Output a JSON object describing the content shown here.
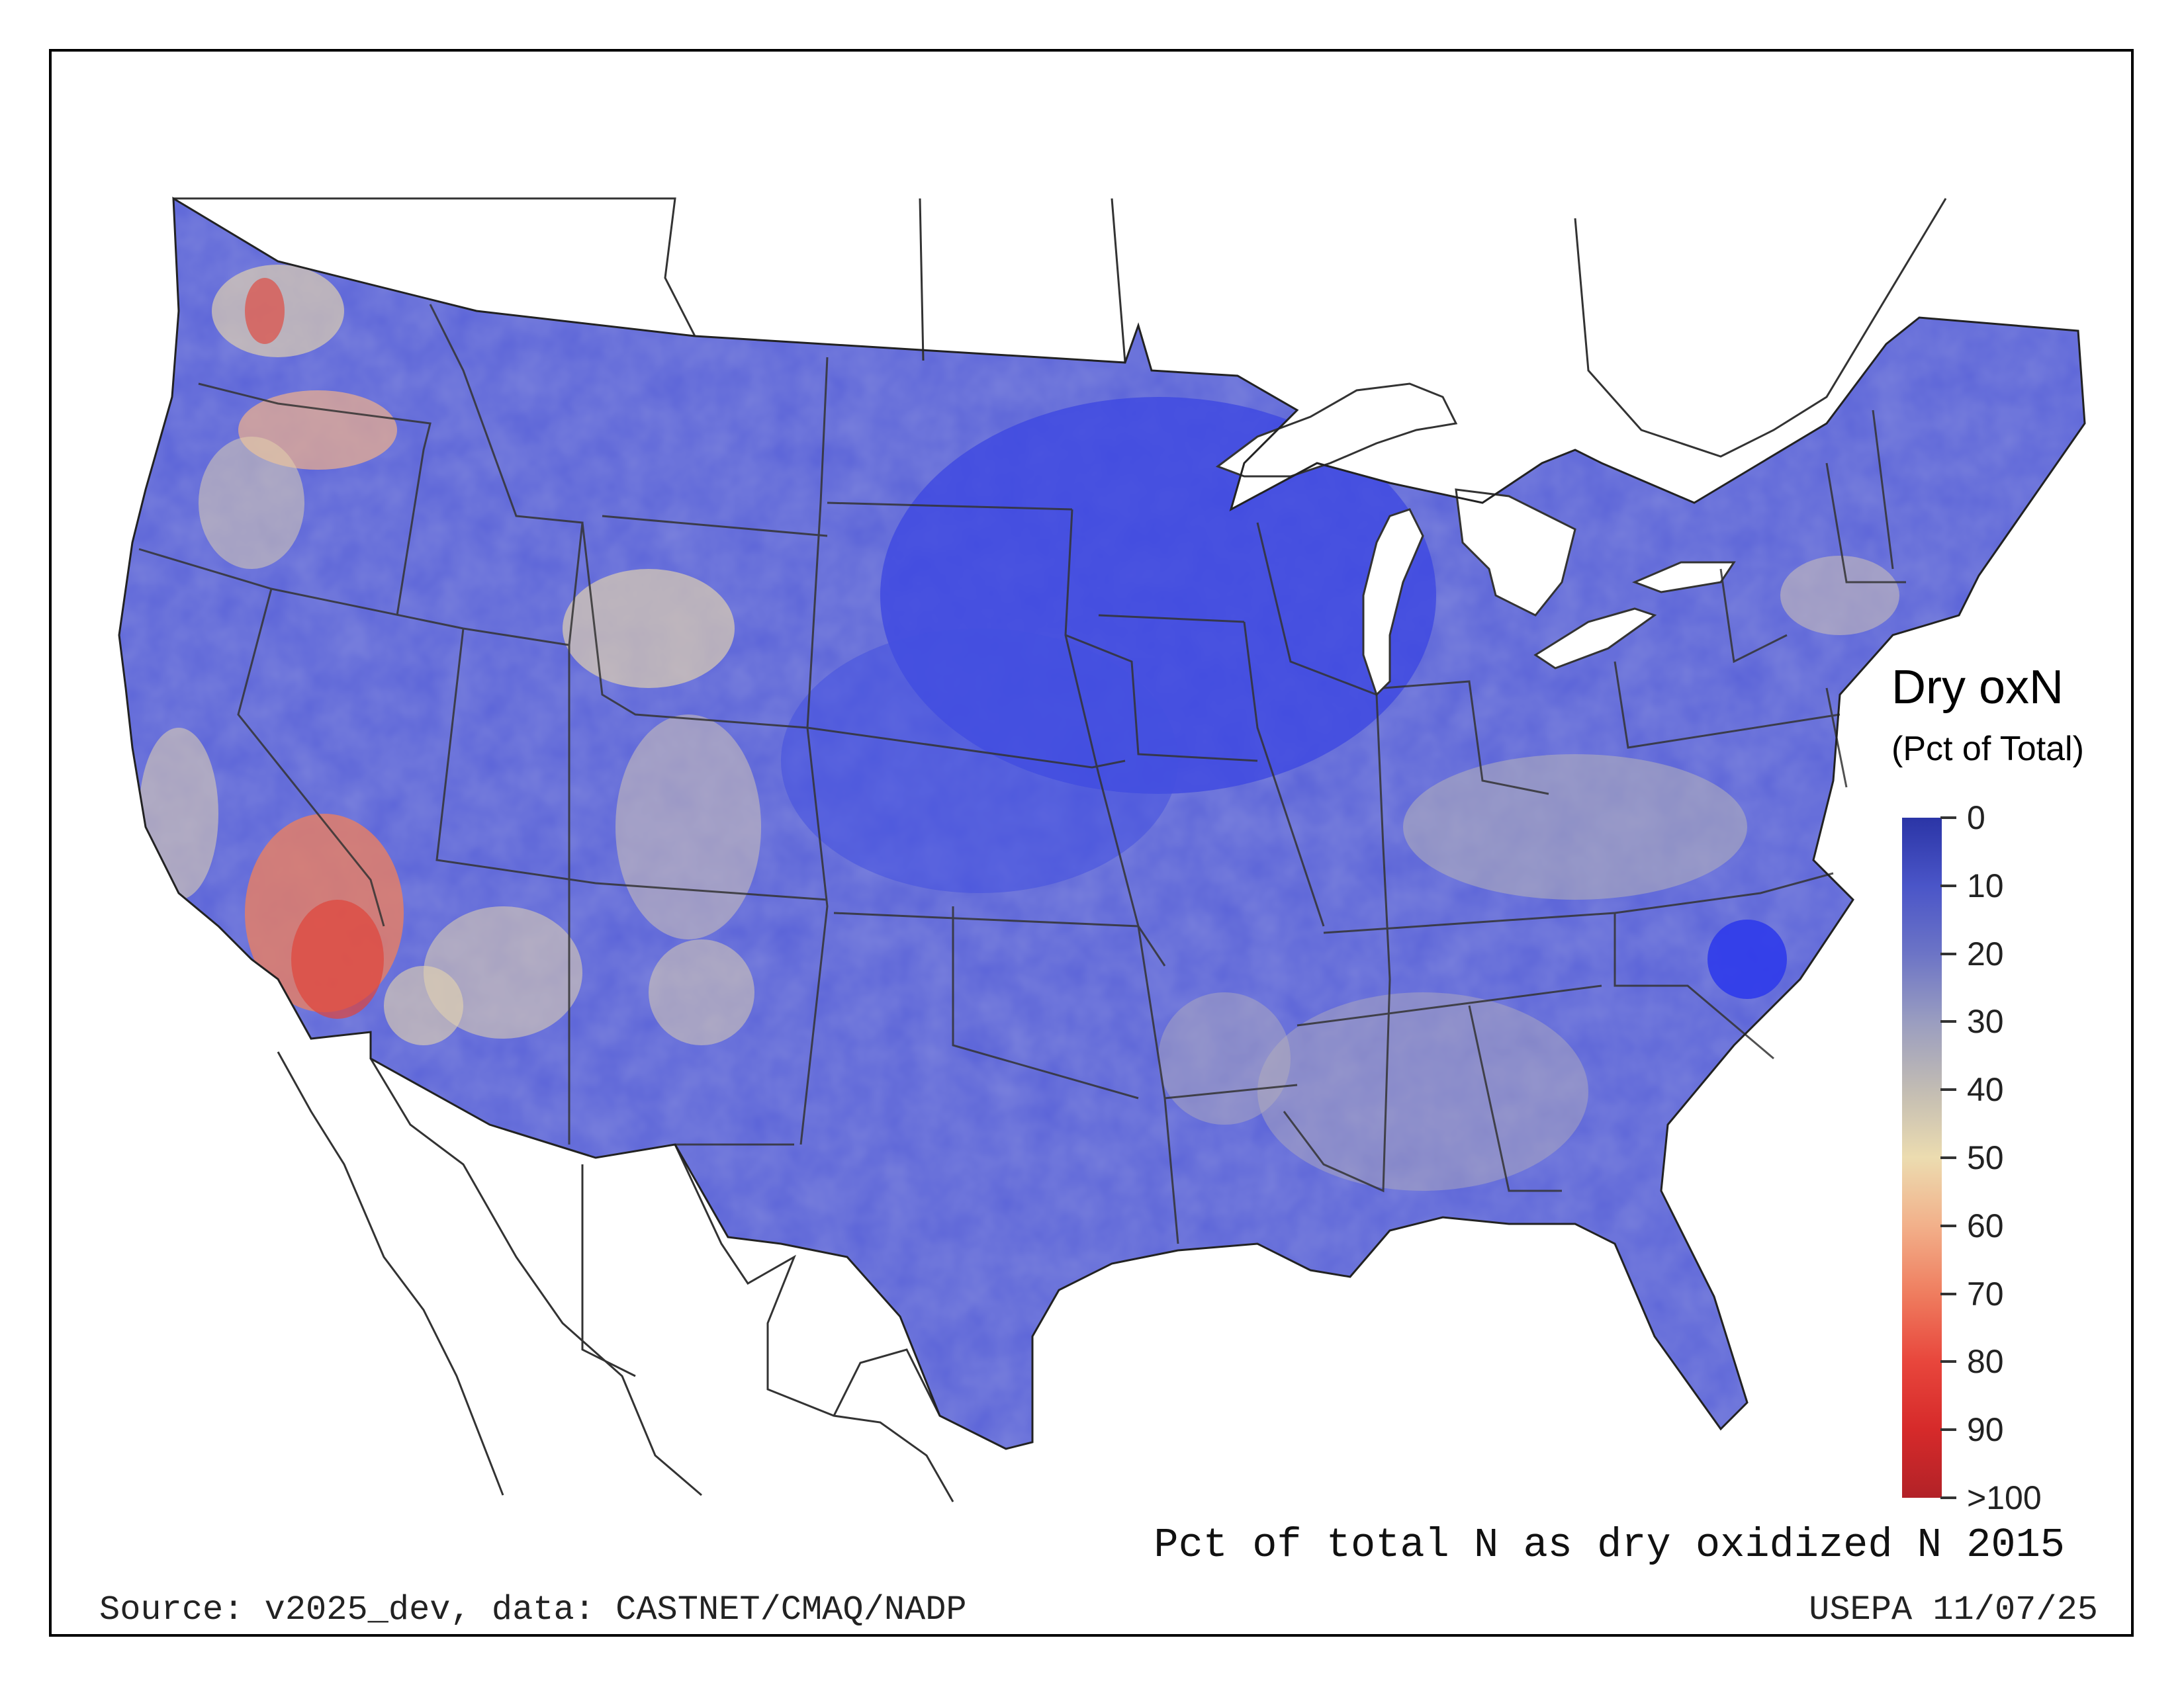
{
  "legend": {
    "title": "Dry oxN",
    "subtitle": "(Pct of Total)",
    "ticks": [
      "0",
      "10",
      "20",
      "30",
      "40",
      "50",
      "60",
      "70",
      "80",
      "90",
      ">100"
    ],
    "colors": [
      "#2b35a6",
      "#4a55c8",
      "#6c74c6",
      "#9a9dc0",
      "#c2bcb3",
      "#ecdcb0",
      "#f2b08a",
      "#ef7d5f",
      "#e8463c",
      "#d62a2a",
      "#b22228"
    ]
  },
  "map": {
    "fill_colors": {
      "deep_blue": "#3b46e2",
      "blue": "#5a63d8",
      "periwinkle": "#7d82cf",
      "gray": "#b7b2b8",
      "tan": "#e6d6ae",
      "peach": "#f0b18c",
      "orange": "#ea8062",
      "red": "#e0453a",
      "land_outside": "#ffffff",
      "boundary": "#333333"
    }
  },
  "caption": "Pct of total N as dry oxidized N 2015",
  "source": "Source: v2025_dev, data: CASTNET/CMAQ/NADP",
  "stamp": "USEPA 11/07/25"
}
